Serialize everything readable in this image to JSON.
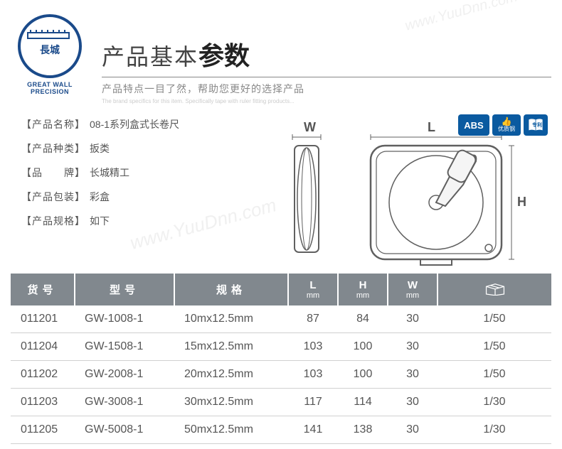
{
  "logo": {
    "inner_text": "長城",
    "sub_text": "GREAT WALL PRECISION",
    "color": "#1a4a8a"
  },
  "header": {
    "title_light": "产品基本",
    "title_bold": "参数",
    "subtitle": "产品特点一目了然，帮助您更好的选择产品"
  },
  "watermark": "www.YuuDnn.com",
  "attrs": [
    {
      "label": "【产品名称】",
      "value": "08-1系列盒式长卷尺"
    },
    {
      "label": "【产品种类】",
      "value": "扳类"
    },
    {
      "label": "【品　　牌】",
      "value": "长城精工"
    },
    {
      "label": "【产品包装】",
      "value": "彩盒"
    },
    {
      "label": "【产品规格】",
      "value": "如下"
    }
  ],
  "diagram": {
    "w_label": "W",
    "l_label": "L",
    "h_label": "H",
    "stroke_color": "#606060"
  },
  "badges": {
    "abs": "ABS",
    "steel": "优质钢",
    "patent": "专利",
    "color": "#0a5aa0"
  },
  "table": {
    "header_bg": "#81888e",
    "header_fg": "#ffffff",
    "row_border": "#d0d0d0",
    "columns": [
      {
        "label": "货号",
        "unit": ""
      },
      {
        "label": "型号",
        "unit": ""
      },
      {
        "label": "规格",
        "unit": ""
      },
      {
        "label": "L",
        "unit": "mm"
      },
      {
        "label": "H",
        "unit": "mm"
      },
      {
        "label": "W",
        "unit": "mm"
      },
      {
        "label": "_box_icon_",
        "unit": ""
      }
    ],
    "rows": [
      [
        "011201",
        "GW-1008-1",
        "10mx12.5mm",
        "87",
        "84",
        "30",
        "1/50"
      ],
      [
        "011204",
        "GW-1508-1",
        "15mx12.5mm",
        "103",
        "100",
        "30",
        "1/50"
      ],
      [
        "011202",
        "GW-2008-1",
        "20mx12.5mm",
        "103",
        "100",
        "30",
        "1/50"
      ],
      [
        "011203",
        "GW-3008-1",
        "30mx12.5mm",
        "117",
        "114",
        "30",
        "1/30"
      ],
      [
        "011205",
        "GW-5008-1",
        "50mx12.5mm",
        "141",
        "138",
        "30",
        "1/30"
      ]
    ]
  }
}
